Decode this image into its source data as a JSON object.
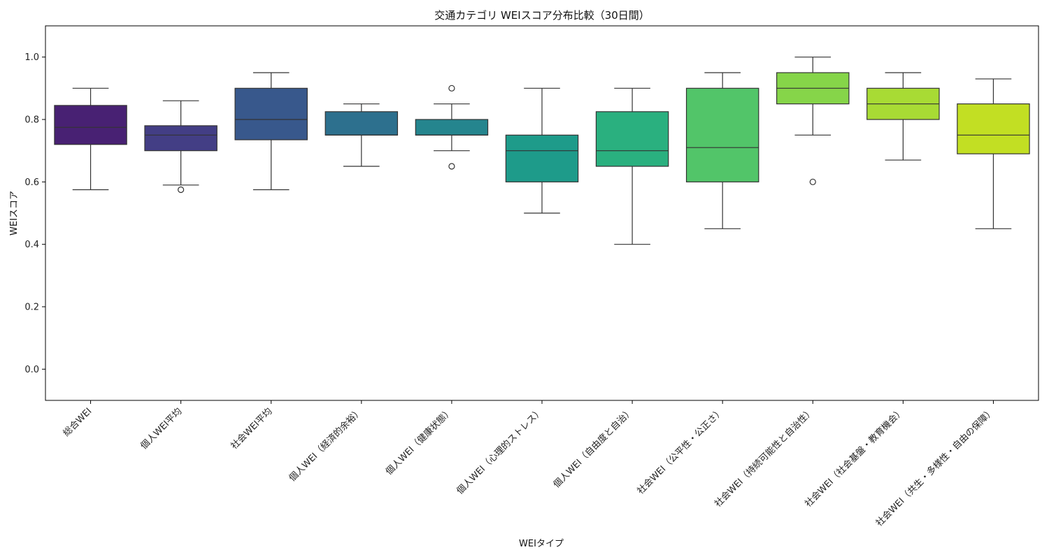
{
  "chart_data": {
    "type": "box",
    "title": "交通カテゴリ WEIスコア分布比較（30日間）",
    "xlabel": "WEIタイプ",
    "ylabel": "WEIスコア",
    "ylim": [
      -0.1,
      1.1
    ],
    "yticks": [
      "0.0",
      "0.2",
      "0.4",
      "0.6",
      "0.8",
      "1.0"
    ],
    "grid": false,
    "legend": "none",
    "boxes": [
      {
        "label": "総合WEI",
        "whisker_low": 0.575,
        "q1": 0.72,
        "median": 0.775,
        "q3": 0.845,
        "whisker_high": 0.9,
        "outliers": [],
        "color": "#482173"
      },
      {
        "label": "個人WEI平均",
        "whisker_low": 0.59,
        "q1": 0.7,
        "median": 0.75,
        "q3": 0.78,
        "whisker_high": 0.86,
        "outliers": [
          0.575
        ],
        "color": "#433e85"
      },
      {
        "label": "社会WEI平均",
        "whisker_low": 0.575,
        "q1": 0.735,
        "median": 0.8,
        "q3": 0.9,
        "whisker_high": 0.95,
        "outliers": [],
        "color": "#38588c"
      },
      {
        "label": "個人WEI（経済的余裕）",
        "whisker_low": 0.65,
        "q1": 0.75,
        "median": 0.75,
        "q3": 0.825,
        "whisker_high": 0.85,
        "outliers": [],
        "color": "#2d708e"
      },
      {
        "label": "個人WEI（健康状態）",
        "whisker_low": 0.7,
        "q1": 0.75,
        "median": 0.75,
        "q3": 0.8,
        "whisker_high": 0.85,
        "outliers": [
          0.65,
          0.9
        ],
        "color": "#25858e"
      },
      {
        "label": "個人WEI（心理的ストレス）",
        "whisker_low": 0.5,
        "q1": 0.6,
        "median": 0.7,
        "q3": 0.75,
        "whisker_high": 0.9,
        "outliers": [],
        "color": "#1e9b8a"
      },
      {
        "label": "個人WEI（自由度と自治）",
        "whisker_low": 0.4,
        "q1": 0.65,
        "median": 0.7,
        "q3": 0.825,
        "whisker_high": 0.9,
        "outliers": [],
        "color": "#2ab07f"
      },
      {
        "label": "社会WEI（公平性・公正さ）",
        "whisker_low": 0.45,
        "q1": 0.6,
        "median": 0.71,
        "q3": 0.9,
        "whisker_high": 0.95,
        "outliers": [],
        "color": "#52c569"
      },
      {
        "label": "社会WEI（持続可能性と自治性）",
        "whisker_low": 0.75,
        "q1": 0.85,
        "median": 0.9,
        "q3": 0.95,
        "whisker_high": 1.0,
        "outliers": [
          0.6
        ],
        "color": "#86d549"
      },
      {
        "label": "社会WEI（社会基盤・教育機会）",
        "whisker_low": 0.67,
        "q1": 0.8,
        "median": 0.85,
        "q3": 0.9,
        "whisker_high": 0.95,
        "outliers": [],
        "color": "#a8db34"
      },
      {
        "label": "社会WEI（共生・多様性・自由の保障）",
        "whisker_low": 0.45,
        "q1": 0.69,
        "median": 0.75,
        "q3": 0.85,
        "whisker_high": 0.93,
        "outliers": [],
        "color": "#c2df23"
      }
    ]
  }
}
